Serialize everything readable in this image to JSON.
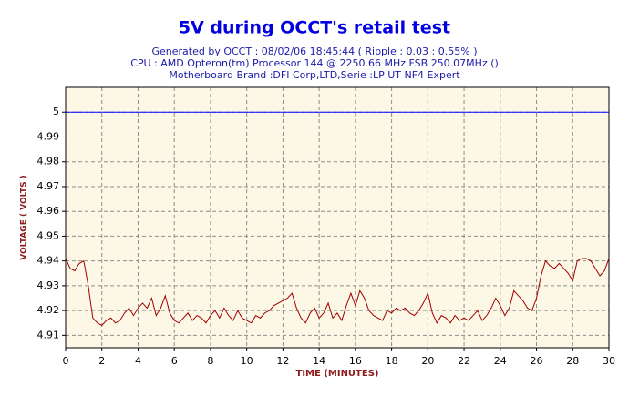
{
  "chart_data": {
    "type": "line",
    "title": "5V during OCCT's retail test",
    "subtitle": [
      "Generated by OCCT : 08/02/06 18:45:44 ( Ripple : 0.03 : 0.55% )",
      "CPU : AMD Opteron(tm) Processor 144    @ 2250.66 MHz FSB 250.07MHz ()",
      "Motherboard Brand :DFI Corp,LTD,Serie :LP UT NF4 Expert"
    ],
    "x_label": "TIME (MINUTES)",
    "y_label": "VOLTAGE ( VOLTS )",
    "xlim": [
      0,
      30
    ],
    "xticks": [
      0,
      2,
      4,
      6,
      8,
      10,
      12,
      14,
      16,
      18,
      20,
      22,
      24,
      26,
      28,
      30
    ],
    "ylim": [
      4.905,
      5.01
    ],
    "yticks": [
      4.91,
      4.92,
      4.93,
      4.94,
      4.95,
      4.96,
      4.97,
      4.98,
      4.99,
      5
    ],
    "grid": true,
    "series": [
      {
        "color": "#0000ff",
        "x": [
          0,
          30
        ],
        "values": [
          5,
          5
        ]
      },
      {
        "color": "#a00000",
        "x": [
          0,
          0.25,
          0.5,
          0.75,
          1,
          1.25,
          1.5,
          1.75,
          2,
          2.25,
          2.5,
          2.75,
          3,
          3.25,
          3.5,
          3.75,
          4,
          4.25,
          4.5,
          4.75,
          5,
          5.25,
          5.5,
          5.75,
          6,
          6.25,
          6.5,
          6.75,
          7,
          7.25,
          7.5,
          7.75,
          8,
          8.25,
          8.5,
          8.75,
          9,
          9.25,
          9.5,
          9.75,
          10,
          10.25,
          10.5,
          10.75,
          11,
          11.25,
          11.5,
          11.75,
          12,
          12.25,
          12.5,
          12.75,
          13,
          13.25,
          13.5,
          13.75,
          14,
          14.25,
          14.5,
          14.75,
          15,
          15.25,
          15.5,
          15.75,
          16,
          16.25,
          16.5,
          16.75,
          17,
          17.25,
          17.5,
          17.75,
          18,
          18.25,
          18.5,
          18.75,
          19,
          19.25,
          19.5,
          19.75,
          20,
          20.25,
          20.5,
          20.75,
          21,
          21.25,
          21.5,
          21.75,
          22,
          22.25,
          22.5,
          22.75,
          23,
          23.25,
          23.5,
          23.75,
          24,
          24.25,
          24.5,
          24.75,
          25,
          25.25,
          25.5,
          25.75,
          26,
          26.25,
          26.5,
          26.75,
          27,
          27.25,
          27.5,
          27.75,
          28,
          28.25,
          28.5,
          28.75,
          29,
          29.25,
          29.5,
          29.75,
          30
        ],
        "values": [
          4.941,
          4.937,
          4.936,
          4.939,
          4.94,
          4.93,
          4.917,
          4.915,
          4.914,
          4.916,
          4.917,
          4.915,
          4.916,
          4.919,
          4.921,
          4.918,
          4.921,
          4.923,
          4.921,
          4.925,
          4.918,
          4.921,
          4.926,
          4.919,
          4.916,
          4.915,
          4.917,
          4.919,
          4.916,
          4.918,
          4.917,
          4.915,
          4.918,
          4.92,
          4.917,
          4.921,
          4.918,
          4.916,
          4.92,
          4.917,
          4.916,
          4.915,
          4.918,
          4.917,
          4.919,
          4.92,
          4.922,
          4.923,
          4.924,
          4.925,
          4.927,
          4.921,
          4.917,
          4.915,
          4.919,
          4.921,
          4.917,
          4.919,
          4.923,
          4.917,
          4.919,
          4.916,
          4.922,
          4.927,
          4.922,
          4.928,
          4.925,
          4.92,
          4.918,
          4.917,
          4.916,
          4.92,
          4.919,
          4.921,
          4.92,
          4.921,
          4.919,
          4.918,
          4.92,
          4.923,
          4.927,
          4.919,
          4.915,
          4.918,
          4.917,
          4.915,
          4.918,
          4.916,
          4.917,
          4.916,
          4.918,
          4.92,
          4.916,
          4.918,
          4.921,
          4.925,
          4.922,
          4.918,
          4.921,
          4.928,
          4.926,
          4.924,
          4.921,
          4.92,
          4.925,
          4.934,
          4.94,
          4.938,
          4.937,
          4.939,
          4.937,
          4.935,
          4.932,
          4.94,
          4.941,
          4.941,
          4.94,
          4.937,
          4.934,
          4.936,
          4.941
        ]
      }
    ]
  }
}
